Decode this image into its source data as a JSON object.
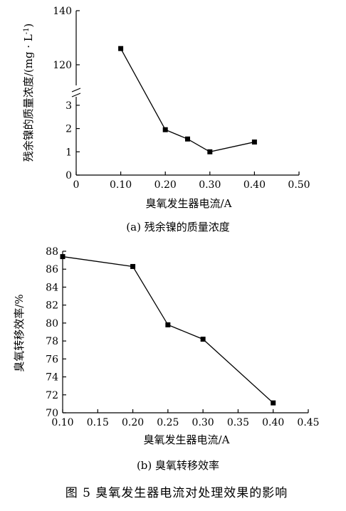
{
  "chart_data": [
    {
      "type": "line",
      "subcaption": "(a) 残余镍的质量浓度",
      "xlabel": "臭氧发生器电流/A",
      "ylabel": "残余镍的质量浓度/(mg · L",
      "ylabel_superscript": "-1",
      "ylabel_suffix": ")",
      "axis_break": true,
      "x": [
        0.1,
        0.2,
        0.25,
        0.3,
        0.4
      ],
      "y": [
        126,
        1.95,
        1.55,
        1.0,
        1.42
      ],
      "xlim": [
        0,
        0.5
      ],
      "xticks": [
        "0",
        "0.10",
        "0.20",
        "0.30",
        "0.40",
        "0.50"
      ],
      "yticks_lower": [
        "0",
        "1",
        "2",
        "3"
      ],
      "yticks_upper": [
        "120",
        "140"
      ],
      "marker": "square",
      "color": "#000000"
    },
    {
      "type": "line",
      "subcaption": "(b) 臭氧转移效率",
      "xlabel": "臭氧发生器电流/A",
      "ylabel": "臭氧转移效率/%",
      "x": [
        0.1,
        0.2,
        0.25,
        0.3,
        0.4
      ],
      "y": [
        87.4,
        86.3,
        79.8,
        78.2,
        71.1
      ],
      "xlim": [
        0.1,
        0.45
      ],
      "ylim": [
        70,
        88
      ],
      "xticks": [
        "0.10",
        "0.15",
        "0.20",
        "0.25",
        "0.30",
        "0.35",
        "0.40",
        "0.45"
      ],
      "yticks": [
        "70",
        "72",
        "74",
        "76",
        "78",
        "80",
        "82",
        "84",
        "86",
        "88"
      ],
      "marker": "square",
      "color": "#000000"
    }
  ],
  "figure_caption": "图 5   臭氧发生器电流对处理效果的影响"
}
